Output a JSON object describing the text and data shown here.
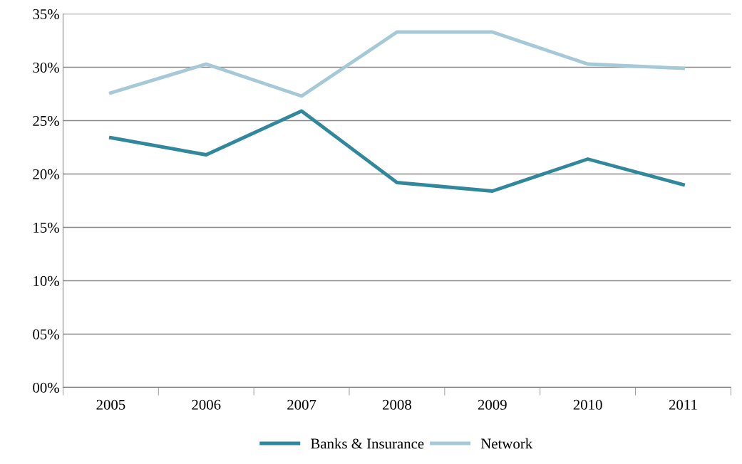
{
  "chart_data": {
    "type": "line",
    "categories": [
      "2005",
      "2006",
      "2007",
      "2008",
      "2009",
      "2010",
      "2011"
    ],
    "series": [
      {
        "name": "Banks & Insurance",
        "color": "#31879b",
        "values": [
          23.4,
          21.8,
          25.9,
          19.2,
          18.4,
          21.4,
          19.0
        ]
      },
      {
        "name": "Network",
        "color": "#a6c9d8",
        "values": [
          27.6,
          30.3,
          27.3,
          33.3,
          33.3,
          30.3,
          29.9
        ]
      }
    ],
    "ylim": [
      0,
      35
    ],
    "yticks": [
      {
        "value": 0,
        "label": "00%"
      },
      {
        "value": 5,
        "label": "05%"
      },
      {
        "value": 10,
        "label": "10%"
      },
      {
        "value": 15,
        "label": "15%"
      },
      {
        "value": 20,
        "label": "20%"
      },
      {
        "value": 25,
        "label": "25%"
      },
      {
        "value": 30,
        "label": "30%"
      },
      {
        "value": 35,
        "label": "35%"
      }
    ],
    "grid": "y",
    "legend": "bottom",
    "marker": "none",
    "line_style": "solid"
  }
}
